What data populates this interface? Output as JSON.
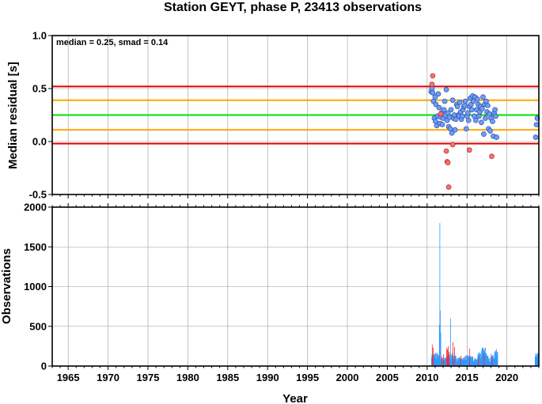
{
  "chart_data": [
    {
      "type": "scatter",
      "title": "Station GEYT, phase P, 23413 observations",
      "annotation": "median = 0.25, smad = 0.14",
      "xlabel": "",
      "ylabel": "Median residual [s]",
      "xlim": [
        1963,
        2024
      ],
      "ylim": [
        -0.5,
        1.0
      ],
      "x_ticks": [
        1965,
        1970,
        1975,
        1980,
        1985,
        1990,
        1995,
        2000,
        2005,
        2010,
        2015,
        2020
      ],
      "y_ticks": [
        -0.5,
        0.0,
        0.5,
        1.0
      ],
      "y_tick_labels": [
        "-0.5",
        "0.0",
        "0.5",
        "1.0"
      ],
      "grid": true,
      "reference_lines": [
        {
          "y": 0.25,
          "color": "#00e000"
        },
        {
          "y": 0.39,
          "color": "#ffa500"
        },
        {
          "y": 0.11,
          "color": "#ffa500"
        },
        {
          "y": 0.52,
          "color": "#e00000"
        },
        {
          "y": -0.02,
          "color": "#e00000"
        }
      ],
      "colors": {
        "normal": "#6f9cf2",
        "outlier": "#f77070"
      },
      "points": {
        "normal": [
          [
            2010.5,
            0.47
          ],
          [
            2010.6,
            0.5
          ],
          [
            2010.7,
            0.46
          ],
          [
            2010.8,
            0.38
          ],
          [
            2010.9,
            0.22
          ],
          [
            2011.0,
            0.42
          ],
          [
            2011.05,
            0.19
          ],
          [
            2011.1,
            0.35
          ],
          [
            2011.2,
            0.15
          ],
          [
            2011.3,
            0.24
          ],
          [
            2011.4,
            0.45
          ],
          [
            2011.5,
            0.32
          ],
          [
            2011.6,
            0.17
          ],
          [
            2011.7,
            0.23
          ],
          [
            2011.8,
            0.27
          ],
          [
            2011.9,
            0.16
          ],
          [
            2012.0,
            0.22
          ],
          [
            2012.1,
            0.3
          ],
          [
            2012.2,
            0.38
          ],
          [
            2012.3,
            0.25
          ],
          [
            2012.4,
            0.49
          ],
          [
            2012.5,
            0.2
          ],
          [
            2012.6,
            0.27
          ],
          [
            2012.7,
            0.14
          ],
          [
            2012.8,
            0.23
          ],
          [
            2012.9,
            0.12
          ],
          [
            2013.0,
            0.3
          ],
          [
            2013.1,
            0.08
          ],
          [
            2013.2,
            0.39
          ],
          [
            2013.3,
            0.22
          ],
          [
            2013.4,
            0.25
          ],
          [
            2013.5,
            0.11
          ],
          [
            2013.6,
            0.21
          ],
          [
            2013.7,
            0.35
          ],
          [
            2013.8,
            0.33
          ],
          [
            2013.9,
            0.25
          ],
          [
            2014.0,
            0.24
          ],
          [
            2014.1,
            0.37
          ],
          [
            2014.2,
            0.28
          ],
          [
            2014.3,
            0.21
          ],
          [
            2014.4,
            0.24
          ],
          [
            2014.5,
            0.3
          ],
          [
            2014.6,
            0.33
          ],
          [
            2014.7,
            0.34
          ],
          [
            2014.8,
            0.38
          ],
          [
            2014.9,
            0.12
          ],
          [
            2015.0,
            0.24
          ],
          [
            2015.1,
            0.27
          ],
          [
            2015.2,
            0.2
          ],
          [
            2015.3,
            0.33
          ],
          [
            2015.4,
            0.41
          ],
          [
            2015.5,
            0.35
          ],
          [
            2015.6,
            0.3
          ],
          [
            2015.7,
            0.43
          ],
          [
            2015.8,
            0.38
          ],
          [
            2015.9,
            0.24
          ],
          [
            2016.0,
            0.42
          ],
          [
            2016.1,
            0.2
          ],
          [
            2016.2,
            0.3
          ],
          [
            2016.3,
            0.4
          ],
          [
            2016.4,
            0.35
          ],
          [
            2016.5,
            0.24
          ],
          [
            2016.6,
            0.28
          ],
          [
            2016.7,
            0.33
          ],
          [
            2016.8,
            0.18
          ],
          [
            2016.9,
            0.31
          ],
          [
            2017.0,
            0.42
          ],
          [
            2017.1,
            0.07
          ],
          [
            2017.2,
            0.35
          ],
          [
            2017.3,
            0.22
          ],
          [
            2017.4,
            0.38
          ],
          [
            2017.5,
            0.28
          ],
          [
            2017.6,
            0.34
          ],
          [
            2017.7,
            0.12
          ],
          [
            2017.8,
            0.26
          ],
          [
            2017.9,
            0.1
          ],
          [
            2018.0,
            0.22
          ],
          [
            2018.2,
            0.19
          ],
          [
            2018.3,
            0.05
          ],
          [
            2018.4,
            0.27
          ],
          [
            2018.5,
            0.3
          ],
          [
            2018.6,
            0.24
          ],
          [
            2018.7,
            0.04
          ],
          [
            2023.6,
            0.04
          ],
          [
            2023.7,
            0.16
          ],
          [
            2023.8,
            0.22
          ]
        ],
        "outlier": [
          [
            2010.6,
            0.54
          ],
          [
            2010.7,
            0.62
          ],
          [
            2011.7,
            0.26
          ],
          [
            2012.4,
            -0.09
          ],
          [
            2012.5,
            -0.19
          ],
          [
            2012.6,
            -0.2
          ],
          [
            2012.7,
            -0.43
          ],
          [
            2013.2,
            -0.03
          ],
          [
            2015.3,
            -0.08
          ],
          [
            2018.1,
            -0.14
          ]
        ]
      }
    },
    {
      "type": "bar",
      "xlabel": "Year",
      "ylabel": "Observations",
      "xlim": [
        1963,
        2024
      ],
      "ylim": [
        0,
        2000
      ],
      "x_ticks": [
        1965,
        1970,
        1975,
        1980,
        1985,
        1990,
        1995,
        2000,
        2005,
        2010,
        2015,
        2020
      ],
      "y_ticks": [
        0,
        500,
        1000,
        1500,
        2000
      ],
      "grid": true,
      "colors": {
        "normal": "#3399ff",
        "outlier": "#ff2020"
      },
      "peak": [
        2011.55,
        1800
      ],
      "spike": [
        2012.9,
        600
      ],
      "busy_period": [
        2010.5,
        2018.8
      ],
      "tail_period": [
        2023.5,
        2024.0
      ],
      "outlier_bars": [
        [
          2010.6,
          270
        ],
        [
          2010.7,
          230
        ],
        [
          2011.8,
          120
        ],
        [
          2012.0,
          150
        ],
        [
          2012.4,
          230
        ],
        [
          2012.5,
          210
        ],
        [
          2012.6,
          250
        ],
        [
          2012.7,
          180
        ],
        [
          2013.2,
          300
        ],
        [
          2013.4,
          240
        ],
        [
          2014.2,
          130
        ],
        [
          2015.3,
          220
        ],
        [
          2016.4,
          110
        ],
        [
          2017.1,
          150
        ],
        [
          2018.1,
          120
        ]
      ]
    }
  ]
}
